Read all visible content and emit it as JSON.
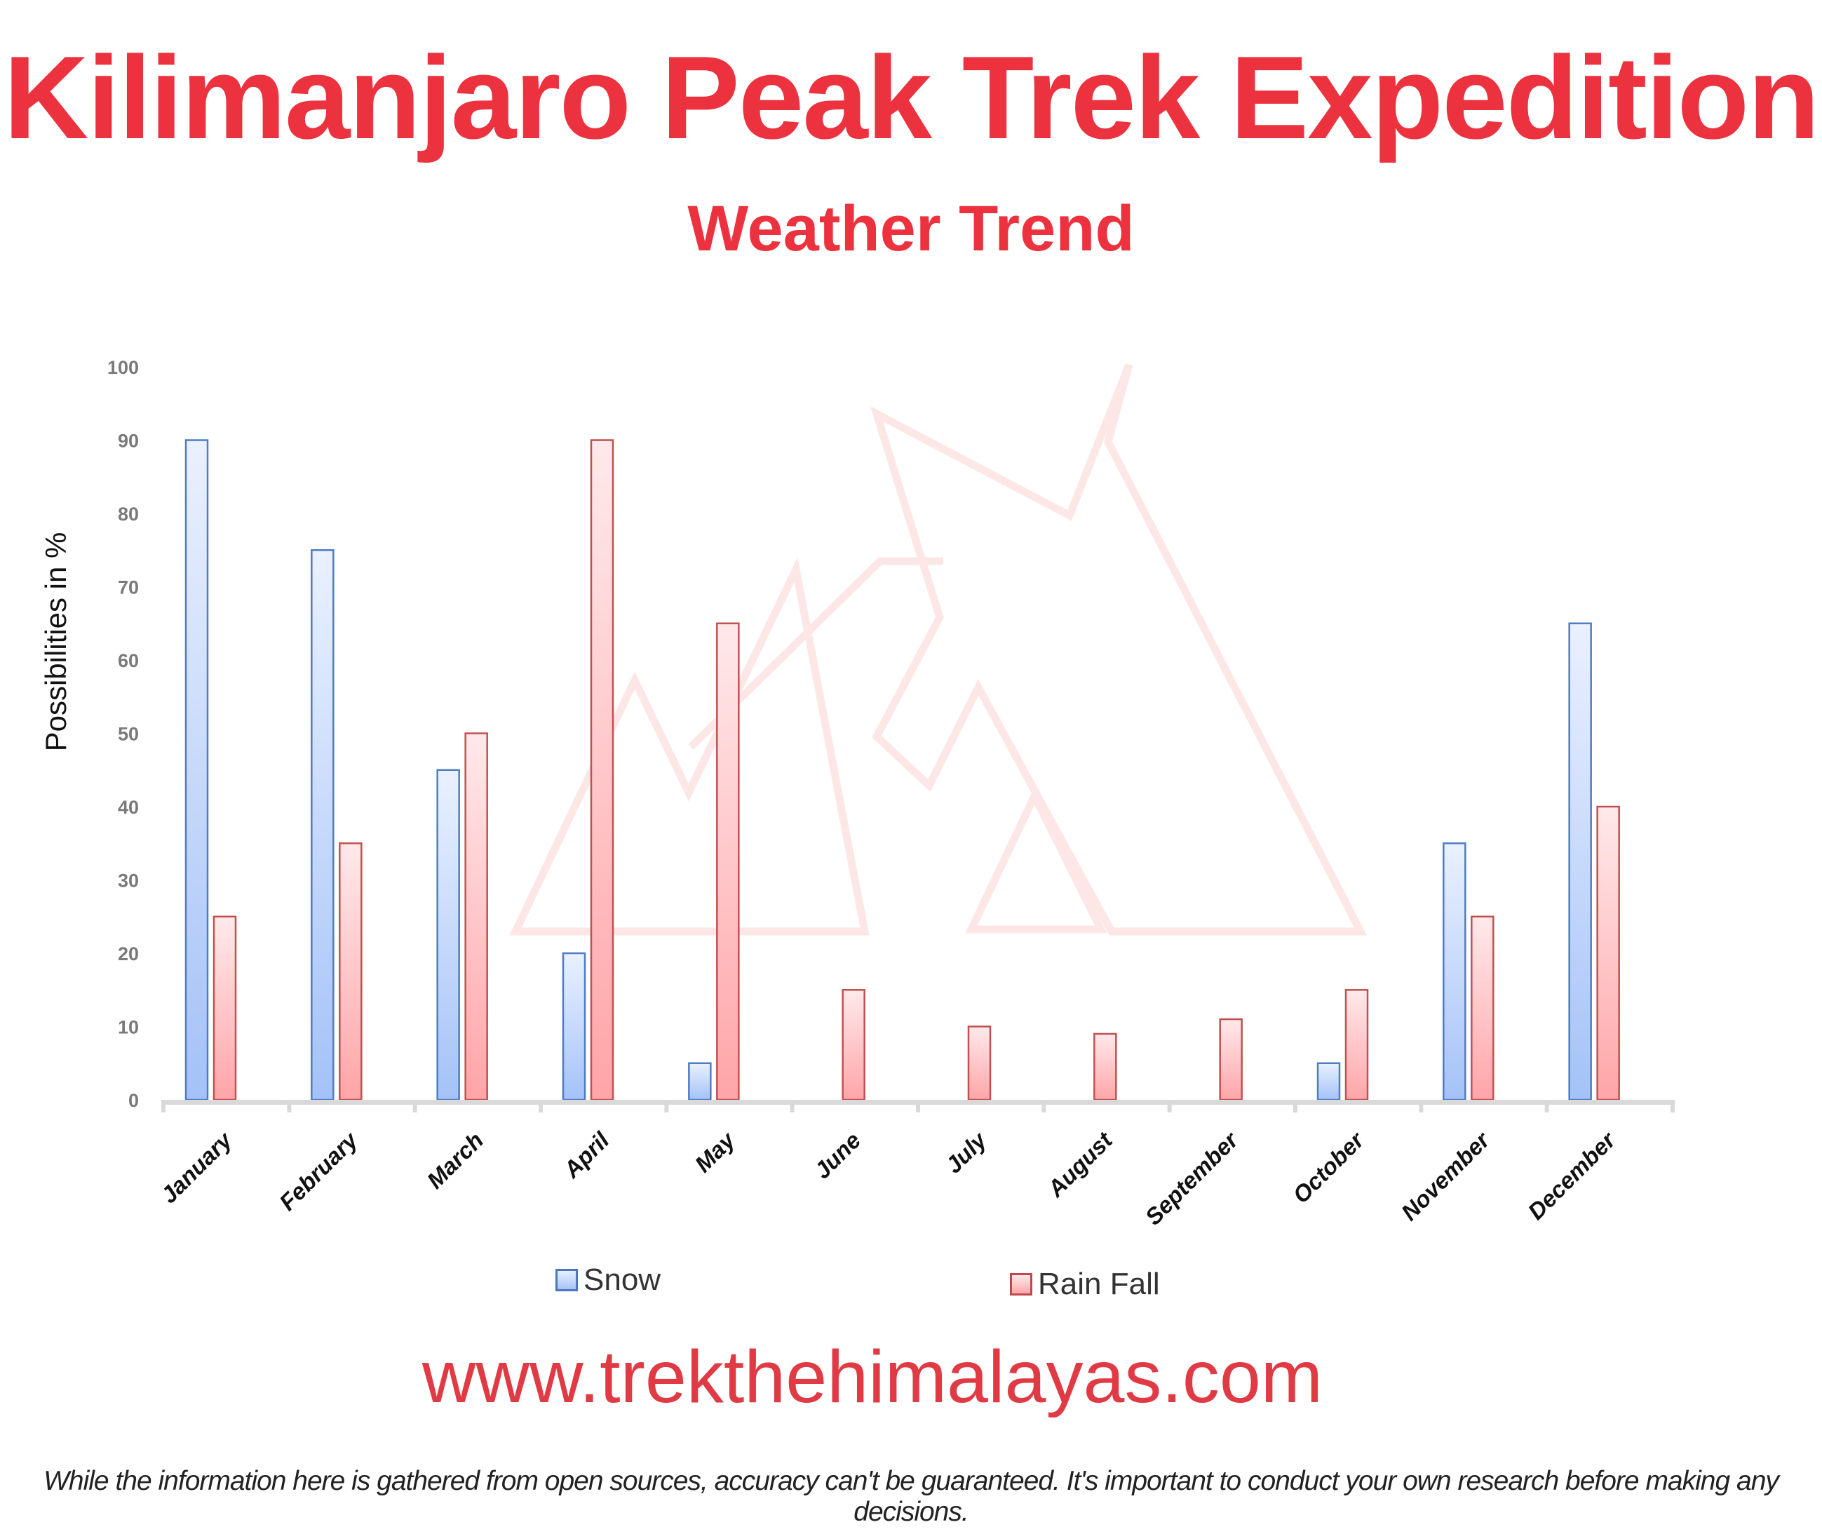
{
  "header": {
    "title": "Kilimanjaro Peak Trek Expedition",
    "subtitle": "Weather Trend"
  },
  "footer": {
    "url": "www.trekthehimalayas.com",
    "disclaimer": "While the information here is gathered from open sources, accuracy can't be guaranteed. It's important to conduct your own research before making any decisions."
  },
  "colors": {
    "title": "#ec323e",
    "snow_fill_top": "#e8f0ff",
    "snow_fill_bottom": "#a8c4f5",
    "snow_border": "#4a78c0",
    "rain_fill_top": "#ffe8ea",
    "rain_fill_bottom": "#ffa8aa",
    "rain_border": "#c04a4a",
    "axis": "#d9d9d9",
    "watermark": "#fde8e8"
  },
  "legend": {
    "snow": "Snow",
    "rain": "Rain Fall"
  },
  "chart_data": {
    "type": "bar",
    "title": "Weather Trend",
    "xlabel": "",
    "ylabel": "Possibilities in %",
    "ylim": [
      0,
      100
    ],
    "yticks": [
      0,
      10,
      20,
      30,
      40,
      50,
      60,
      70,
      80,
      90,
      100
    ],
    "grid": false,
    "legend_position": "bottom",
    "categories": [
      "January",
      "February",
      "March",
      "April",
      "May",
      "June",
      "July",
      "August",
      "September",
      "October",
      "November",
      "December"
    ],
    "series": [
      {
        "name": "Snow",
        "values": [
          90,
          75,
          45,
          20,
          5,
          0,
          0,
          0,
          0,
          5,
          35,
          65
        ]
      },
      {
        "name": "Rain Fall",
        "values": [
          25,
          35,
          50,
          90,
          65,
          15,
          10,
          9,
          11,
          15,
          25,
          40
        ]
      }
    ]
  }
}
